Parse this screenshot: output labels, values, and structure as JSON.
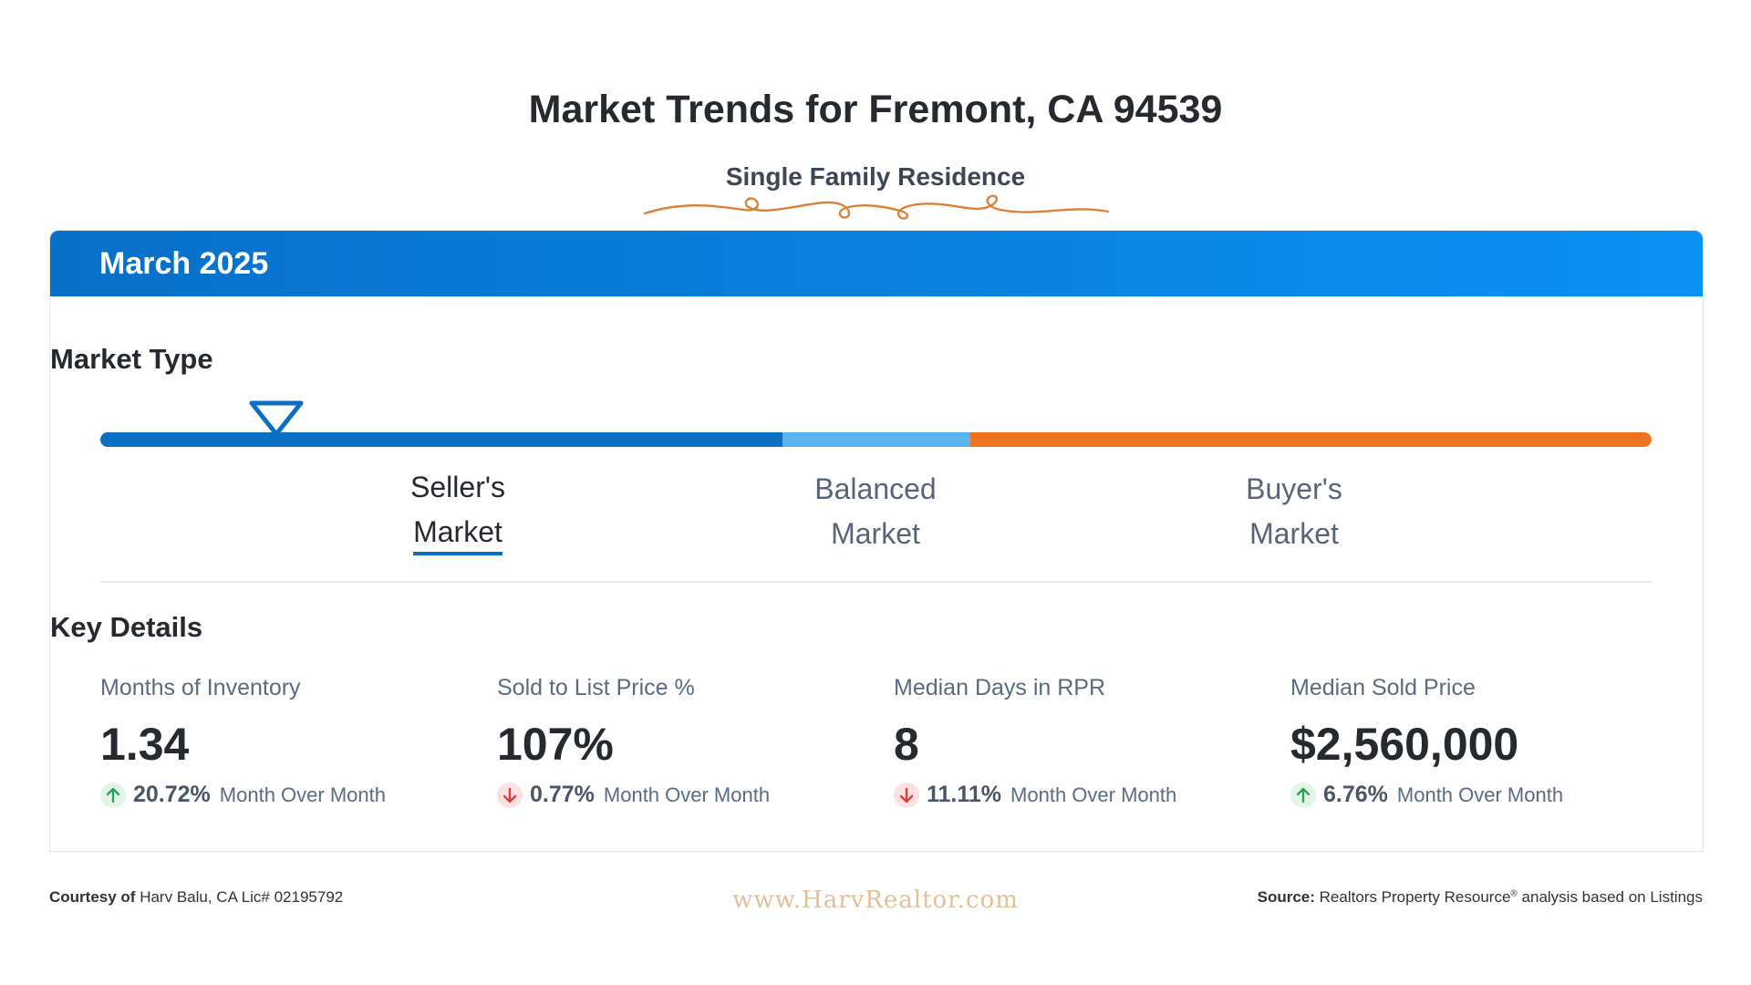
{
  "title": "Market Trends for Fremont, CA 94539",
  "subtitle": "Single Family Residence",
  "colors": {
    "header_blue": "#0a82e0",
    "seller": "#0a6fc2",
    "balanced": "#5bb4f2",
    "buyer": "#ee7422",
    "up": "#2e9e5b",
    "down": "#d9403a",
    "flourish": "#d9823a"
  },
  "card": {
    "period": "March 2025",
    "market_type": {
      "heading": "Market Type",
      "active": "seller",
      "labels": {
        "seller": {
          "line1": "Seller's",
          "line2": "Market"
        },
        "balanced": {
          "line1": "Balanced",
          "line2": "Market"
        },
        "buyer": {
          "line1": "Buyer's",
          "line2": "Market"
        }
      }
    },
    "key_details": {
      "heading": "Key Details",
      "metrics": [
        {
          "label": "Months of Inventory",
          "value": "1.34",
          "direction": "up",
          "change": "20.72%",
          "period": "Month Over Month"
        },
        {
          "label": "Sold to List Price %",
          "value": "107%",
          "direction": "down",
          "change": "0.77%",
          "period": "Month Over Month"
        },
        {
          "label": "Median Days in RPR",
          "value": "8",
          "direction": "down",
          "change": "11.11%",
          "period": "Month Over Month"
        },
        {
          "label": "Median Sold Price",
          "value": "$2,560,000",
          "direction": "up",
          "change": "6.76%",
          "period": "Month Over Month"
        }
      ]
    }
  },
  "footer": {
    "courtesy_label": "Courtesy of",
    "courtesy_text": "Harv Balu, CA Lic# 02195792",
    "website": "www.HarvRealtor.com",
    "source_label": "Source:",
    "source_text_a": "Realtors Property Resource",
    "source_reg": "®",
    "source_text_b": "analysis based on Listings"
  }
}
